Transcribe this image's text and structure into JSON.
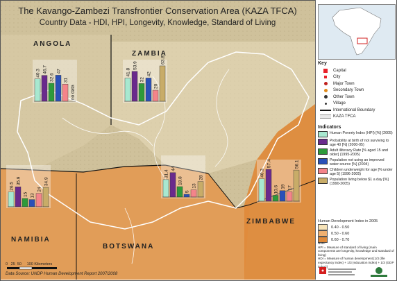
{
  "title": "The Kavango-Zambezi Transfrontier Conservation Area (KAZA TFCA)",
  "subtitle": "Country Data - HDI, HPI, Longevity, Knowledge, Standard of Living",
  "source": "Data Source: UNDP Human Development Report 2007/2008",
  "scale_labels": {
    "zero": "0",
    "mid1": "25",
    "mid2": "50",
    "end": "100 Kilometers"
  },
  "legend_key": {
    "heading": "Key",
    "items": [
      {
        "label": "Capital",
        "symbol": "square",
        "color": "#e8212a"
      },
      {
        "label": "City",
        "symbol": "square-small",
        "color": "#e8212a"
      },
      {
        "label": "Major Town",
        "symbol": "dot",
        "color": "#c0201e"
      },
      {
        "label": "Secondary Town",
        "symbol": "dot",
        "color": "#e08a1a"
      },
      {
        "label": "Other Town",
        "symbol": "dot",
        "color": "#333333"
      },
      {
        "label": "Village",
        "symbol": "dot-small",
        "color": "#333333"
      },
      {
        "label": "International Boundary",
        "symbol": "line",
        "color": "#111111"
      },
      {
        "label": "KAZA TFCA",
        "symbol": "double-line",
        "color": "#ffffff"
      }
    ]
  },
  "indicators": {
    "heading": "Indicators",
    "items": [
      {
        "label": "Human Poverty Index (HPI) [%] (2005)",
        "color": "#a8e8d0"
      },
      {
        "label": "Probability at birth of not surviving to age 40 [%] (2000-05)",
        "color": "#6a2a8c"
      },
      {
        "label": "Adult illiteracy Rate [% aged 15 and older] (1995-2005)",
        "color": "#2e9a3a"
      },
      {
        "label": "Population not using an improved water source [%] (2004)",
        "color": "#2a50b8"
      },
      {
        "label": "Children underweight for age [% under age 5] (1996-2005)",
        "color": "#f4848a"
      },
      {
        "label": "Population living below $1 a day [%] (1990-2005)",
        "color": "#c8ac68"
      }
    ]
  },
  "hdi_legend": {
    "heading": "Human Development Index in 2005",
    "items": [
      {
        "label": "0.40 - 0.50",
        "color": "#f6e3b8"
      },
      {
        "label": "0.50 - 0.60",
        "color": "#f0b070"
      },
      {
        "label": "0.60 - 0.70",
        "color": "#e08a3a"
      }
    ]
  },
  "note_text": "Note:\nHPI = Measure of standard of living (main components are longevity, knowledge and standard of living)\nHDI = Measure of human development [1/3 (life expectancy index) + 1/3 (education index) + 1/3 (GDP index)]",
  "countries": {
    "angola": "ANGOLA",
    "zambia": "ZAMBIA",
    "namibia": "NAMIBIA",
    "botswana": "BOTSWANA",
    "zimbabwe": "ZIMBABWE"
  },
  "chart_data": [
    {
      "type": "bar",
      "country": "Angola",
      "values": [
        40.3,
        46.7,
        32.6,
        47,
        31,
        null
      ],
      "labels": [
        "40.3",
        "46.7",
        "32.6",
        "47",
        "31",
        "no data"
      ]
    },
    {
      "type": "bar",
      "country": "Zambia",
      "values": [
        41.8,
        53.9,
        32,
        42,
        20,
        63.8
      ],
      "labels": [
        "41.8",
        "53.9",
        "32",
        "42",
        "20",
        "63.8"
      ]
    },
    {
      "type": "bar",
      "country": "Namibia",
      "values": [
        26.5,
        35.9,
        15,
        13,
        24,
        34.9
      ],
      "labels": [
        "26.5",
        "35.9",
        "15",
        "13",
        "24",
        "34.9"
      ]
    },
    {
      "type": "bar",
      "country": "Botswana",
      "values": [
        31.4,
        44,
        18.8,
        5,
        13,
        28
      ],
      "labels": [
        "31.4",
        "44",
        "18.8",
        "5",
        "13",
        "28"
      ]
    },
    {
      "type": "bar",
      "country": "Zimbabwe",
      "values": [
        40.3,
        57.4,
        10.6,
        19,
        17,
        56.1
      ],
      "labels": [
        "40.3",
        "57.4",
        "10.6",
        "19",
        "17",
        "56.1"
      ]
    }
  ]
}
